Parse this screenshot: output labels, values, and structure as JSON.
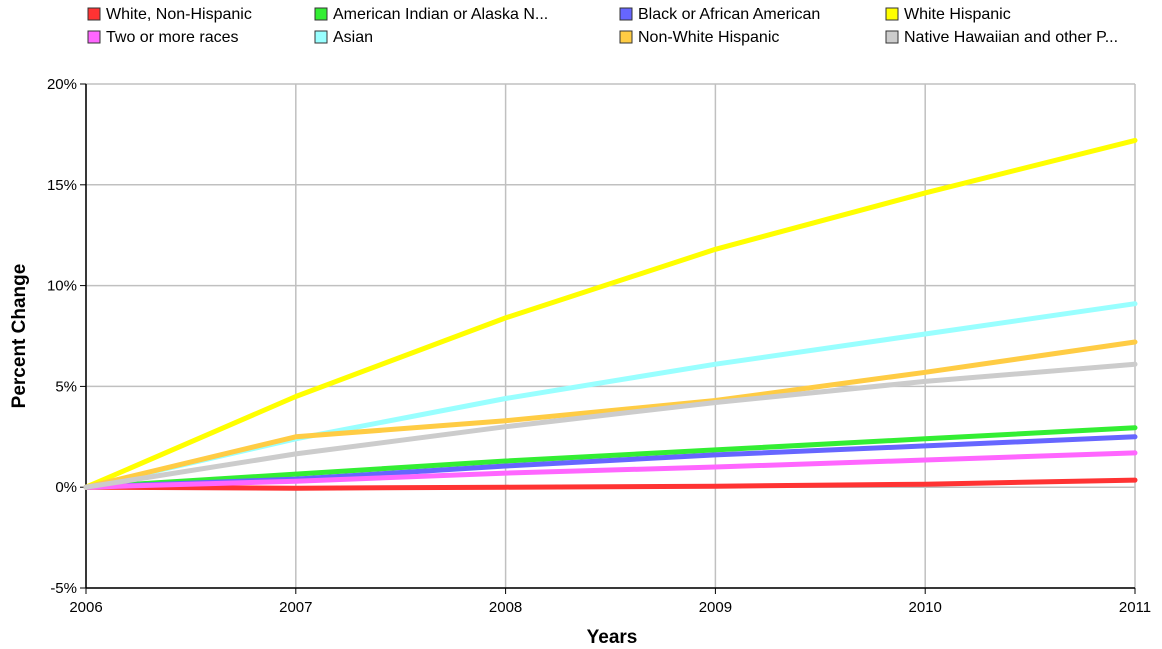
{
  "chart_data": {
    "type": "line",
    "xlabel": "Years",
    "ylabel": "Percent Change",
    "x": [
      "2006",
      "2007",
      "2008",
      "2009",
      "2010",
      "2011"
    ],
    "xlim": [
      2006,
      2011
    ],
    "ylim": [
      -5,
      20
    ],
    "y_ticks": [
      "-5%",
      "0%",
      "5%",
      "10%",
      "15%",
      "20%"
    ],
    "grid": true,
    "legend_position": "top",
    "series": [
      {
        "name": "White, Non-Hispanic",
        "color": "#ff3333",
        "values": [
          0,
          -0.05,
          0.0,
          0.05,
          0.15,
          0.35
        ]
      },
      {
        "name": "American Indian or Alaska N...",
        "color": "#33ee33",
        "values": [
          0,
          0.65,
          1.3,
          1.85,
          2.4,
          2.95
        ]
      },
      {
        "name": "Black or African American",
        "color": "#6666ff",
        "values": [
          0,
          0.4,
          1.05,
          1.6,
          2.05,
          2.5
        ]
      },
      {
        "name": "White Hispanic",
        "color": "#ffff00",
        "values": [
          0,
          4.5,
          8.4,
          11.8,
          14.6,
          17.2
        ]
      },
      {
        "name": "Two or more races",
        "color": "#ff66ff",
        "values": [
          0,
          0.3,
          0.7,
          1.0,
          1.35,
          1.7
        ]
      },
      {
        "name": "Asian",
        "color": "#99ffff",
        "values": [
          0,
          2.4,
          4.4,
          6.1,
          7.6,
          9.1
        ]
      },
      {
        "name": "Non-White Hispanic",
        "color": "#ffcc44",
        "values": [
          0,
          2.5,
          3.3,
          4.3,
          5.7,
          7.2
        ]
      },
      {
        "name": "Native Hawaiian and other P...",
        "color": "#cccccc",
        "values": [
          0,
          1.65,
          3.0,
          4.2,
          5.25,
          6.1
        ]
      }
    ]
  }
}
